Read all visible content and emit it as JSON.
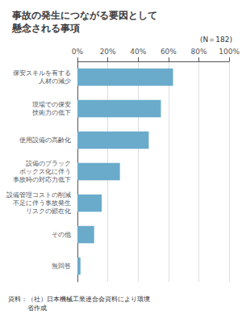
{
  "chart_data": {
    "type": "bar",
    "orientation": "horizontal",
    "title": "事故の発生につながる要因として\n懸念される事項",
    "annotations": [
      "(N＝182)",
      "資料：（社）日本機械工業連合会資料により環境\n　　　省作成"
    ],
    "categories": [
      "保安スキルを有する\n人材の減少",
      "現場での保安\n技術力の低下",
      "使用設備の高齢化",
      "設備のブラック\nボックス化に伴う\n事故時の対応力低下",
      "設備管理コストの削減\n不足に伴う事故発生\nリスクの顕在化",
      "その他",
      "無回答"
    ],
    "values": [
      63,
      55,
      47,
      28,
      16,
      11,
      2
    ],
    "color": "#6aabcb",
    "xlim": [
      0,
      100
    ],
    "xticks": [
      {
        "value": 0,
        "label": "0%"
      },
      {
        "value": 20,
        "label": "20%"
      },
      {
        "value": 40,
        "label": "40%"
      },
      {
        "value": 60,
        "label": "60%"
      },
      {
        "value": 80,
        "label": "80%"
      },
      {
        "value": 100,
        "label": "100%"
      }
    ],
    "grid": true
  }
}
